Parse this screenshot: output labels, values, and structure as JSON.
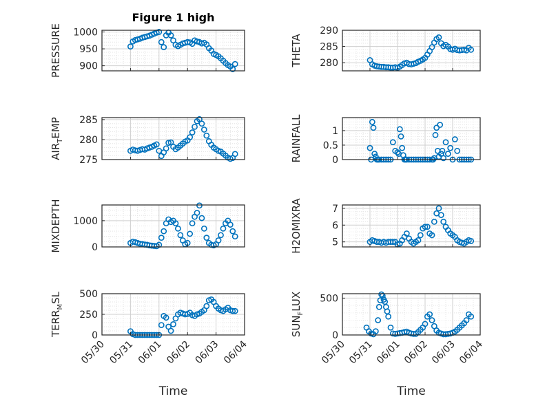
{
  "figure": {
    "title": "Figure 1 high",
    "x_label": "Time",
    "date_ticks": [
      "05/30",
      "05/31",
      "06/01",
      "06/02",
      "06/03",
      "06/04"
    ]
  },
  "colors": {
    "marker": "#0072BD",
    "axes": "#262626",
    "grid": "#d9d9d9",
    "background": "#ffffff"
  },
  "chart_data": [
    {
      "type": "scatter",
      "ylabel_main": "PRESSURE",
      "ylabel_sub": "",
      "ylabel_tail": "",
      "ylim": [
        885,
        1005
      ],
      "yticks": [
        900,
        950,
        1000
      ],
      "ytick_labels": [
        "900",
        "950",
        "1000"
      ],
      "title": "Figure 1 high",
      "x": [
        "05/31 00:00",
        "05/31 02:00",
        "05/31 04:00",
        "05/31 06:00",
        "05/31 08:00",
        "05/31 10:00",
        "05/31 12:00",
        "05/31 14:00",
        "05/31 16:00",
        "05/31 18:00",
        "05/31 20:00",
        "05/31 22:00",
        "06/01 00:00",
        "06/01 02:00",
        "06/01 04:00",
        "06/01 06:00",
        "06/01 08:00",
        "06/01 10:00",
        "06/01 12:00",
        "06/01 14:00",
        "06/01 16:00",
        "06/01 18:00",
        "06/01 20:00",
        "06/01 22:00",
        "06/02 00:00",
        "06/02 02:00",
        "06/02 04:00",
        "06/02 06:00",
        "06/02 08:00",
        "06/02 10:00",
        "06/02 12:00",
        "06/02 14:00",
        "06/02 16:00",
        "06/02 18:00",
        "06/02 20:00",
        "06/02 22:00",
        "06/03 00:00",
        "06/03 02:00",
        "06/03 04:00",
        "06/03 06:00",
        "06/03 08:00",
        "06/03 10:00",
        "06/03 12:00",
        "06/03 14:00",
        "06/03 16:00"
      ],
      "y": [
        957,
        972,
        976,
        978,
        980,
        983,
        985,
        987,
        989,
        992,
        995,
        998,
        1000,
        970,
        955,
        990,
        998,
        990,
        975,
        962,
        958,
        962,
        966,
        968,
        970,
        969,
        965,
        975,
        972,
        970,
        966,
        968,
        963,
        952,
        945,
        935,
        932,
        928,
        922,
        915,
        908,
        902,
        898,
        890,
        905
      ]
    },
    {
      "type": "scatter",
      "ylabel_main": "THETA",
      "ylabel_sub": "",
      "ylabel_tail": "",
      "ylim": [
        277.5,
        290
      ],
      "yticks": [
        280,
        285,
        290
      ],
      "ytick_labels": [
        "280",
        "285",
        "290"
      ],
      "title": "",
      "x": [
        "05/31 00:00",
        "05/31 02:00",
        "05/31 04:00",
        "05/31 06:00",
        "05/31 08:00",
        "05/31 10:00",
        "05/31 12:00",
        "05/31 14:00",
        "05/31 16:00",
        "05/31 18:00",
        "05/31 20:00",
        "05/31 22:00",
        "06/01 00:00",
        "06/01 02:00",
        "06/01 04:00",
        "06/01 06:00",
        "06/01 08:00",
        "06/01 10:00",
        "06/01 12:00",
        "06/01 14:00",
        "06/01 16:00",
        "06/01 18:00",
        "06/01 20:00",
        "06/01 22:00",
        "06/02 00:00",
        "06/02 02:00",
        "06/02 04:00",
        "06/02 06:00",
        "06/02 08:00",
        "06/02 10:00",
        "06/02 12:00",
        "06/02 14:00",
        "06/02 16:00",
        "06/02 18:00",
        "06/02 20:00",
        "06/02 22:00",
        "06/03 00:00",
        "06/03 02:00",
        "06/03 04:00",
        "06/03 06:00",
        "06/03 08:00",
        "06/03 10:00",
        "06/03 12:00",
        "06/03 14:00",
        "06/03 16:00"
      ],
      "y": [
        280.8,
        279.5,
        279.1,
        278.9,
        278.8,
        278.7,
        278.7,
        278.6,
        278.6,
        278.5,
        278.5,
        278.6,
        278.4,
        278.8,
        279.3,
        279.8,
        280.0,
        279.6,
        279.5,
        279.7,
        279.9,
        280.3,
        280.6,
        281.0,
        281.5,
        282.5,
        283.6,
        284.8,
        286.2,
        287.3,
        287.8,
        286.0,
        285.1,
        285.5,
        285.0,
        284.2,
        284.0,
        284.3,
        283.9,
        283.8,
        283.9,
        284.0,
        283.8,
        284.6,
        284.0
      ]
    },
    {
      "type": "scatter",
      "ylabel_main": "AIR",
      "ylabel_sub": "T",
      "ylabel_tail": "EMP",
      "ylim": [
        275,
        285.5
      ],
      "yticks": [
        275,
        280,
        285
      ],
      "ytick_labels": [
        "275",
        "280",
        "285"
      ],
      "title": "",
      "x": [
        "05/31 00:00",
        "05/31 02:00",
        "05/31 04:00",
        "05/31 06:00",
        "05/31 08:00",
        "05/31 10:00",
        "05/31 12:00",
        "05/31 14:00",
        "05/31 16:00",
        "05/31 18:00",
        "05/31 20:00",
        "05/31 22:00",
        "06/01 00:00",
        "06/01 02:00",
        "06/01 04:00",
        "06/01 06:00",
        "06/01 08:00",
        "06/01 10:00",
        "06/01 12:00",
        "06/01 14:00",
        "06/01 16:00",
        "06/01 18:00",
        "06/01 20:00",
        "06/01 22:00",
        "06/02 00:00",
        "06/02 02:00",
        "06/02 04:00",
        "06/02 06:00",
        "06/02 08:00",
        "06/02 10:00",
        "06/02 12:00",
        "06/02 14:00",
        "06/02 16:00",
        "06/02 18:00",
        "06/02 20:00",
        "06/02 22:00",
        "06/03 00:00",
        "06/03 02:00",
        "06/03 04:00",
        "06/03 06:00",
        "06/03 08:00",
        "06/03 10:00",
        "06/03 12:00",
        "06/03 14:00",
        "06/03 16:00"
      ],
      "y": [
        277.2,
        277.5,
        277.3,
        277.2,
        277.4,
        277.6,
        277.5,
        277.8,
        278.0,
        278.2,
        278.5,
        278.8,
        277.2,
        275.9,
        276.8,
        277.8,
        279.2,
        279.3,
        278.2,
        277.6,
        278.0,
        278.5,
        279.0,
        279.5,
        279.8,
        280.6,
        281.8,
        283.2,
        284.6,
        285.1,
        284.0,
        282.5,
        281.0,
        279.6,
        278.7,
        278.0,
        277.6,
        277.2,
        277.0,
        276.5,
        276.0,
        275.5,
        275.2,
        275.4,
        276.4
      ]
    },
    {
      "type": "scatter",
      "ylabel_main": "RAINFALL",
      "ylabel_sub": "",
      "ylabel_tail": "",
      "ylim": [
        0,
        1.45
      ],
      "yticks": [
        0,
        0.5,
        1
      ],
      "ytick_labels": [
        "0",
        "0.5",
        "1"
      ],
      "title": "",
      "x": [
        "05/31 00:00",
        "05/31 01:00",
        "05/31 02:00",
        "05/31 03:00",
        "05/31 04:00",
        "05/31 05:00",
        "05/31 06:00",
        "05/31 07:00",
        "05/31 08:00",
        "05/31 10:00",
        "05/31 12:00",
        "05/31 14:00",
        "05/31 16:00",
        "05/31 18:00",
        "05/31 20:00",
        "05/31 22:00",
        "06/01 00:00",
        "06/01 01:00",
        "06/01 02:00",
        "06/01 03:00",
        "06/01 04:00",
        "06/01 05:00",
        "06/01 06:00",
        "06/01 07:00",
        "06/01 08:00",
        "06/01 10:00",
        "06/01 12:00",
        "06/01 14:00",
        "06/01 16:00",
        "06/01 18:00",
        "06/01 20:00",
        "06/01 22:00",
        "06/02 00:00",
        "06/02 02:00",
        "06/02 04:00",
        "06/02 06:00",
        "06/02 07:00",
        "06/02 08:00",
        "06/02 09:00",
        "06/02 10:00",
        "06/02 11:00",
        "06/02 12:00",
        "06/02 13:00",
        "06/02 14:00",
        "06/02 15:00",
        "06/02 16:00",
        "06/02 18:00",
        "06/02 20:00",
        "06/02 22:00",
        "06/03 00:00",
        "06/03 02:00",
        "06/03 04:00",
        "06/03 06:00",
        "06/03 08:00",
        "06/03 10:00",
        "06/03 12:00",
        "06/03 14:00",
        "06/03 16:00"
      ],
      "y": [
        0.4,
        0,
        1.3,
        1.1,
        0.2,
        0.1,
        0,
        0,
        0,
        0,
        0,
        0,
        0,
        0,
        0.6,
        0.3,
        0.25,
        0.2,
        1.05,
        0.8,
        0.4,
        0.15,
        0,
        0,
        0,
        0,
        0,
        0,
        0,
        0,
        0,
        0,
        0,
        0,
        0,
        0,
        0,
        0.05,
        0.85,
        1.1,
        0.3,
        0.1,
        1.2,
        0.2,
        0.3,
        0.05,
        0.6,
        0.2,
        0.4,
        0,
        0.7,
        0.3,
        0,
        0,
        0,
        0,
        0,
        0
      ]
    },
    {
      "type": "scatter",
      "ylabel_main": "MIXDEPTH",
      "ylabel_sub": "",
      "ylabel_tail": "",
      "ylim": [
        0,
        1600
      ],
      "yticks": [
        0,
        1000
      ],
      "ytick_labels": [
        "0",
        "1000"
      ],
      "title": "",
      "x": [
        "05/31 00:00",
        "05/31 02:00",
        "05/31 04:00",
        "05/31 06:00",
        "05/31 08:00",
        "05/31 10:00",
        "05/31 12:00",
        "05/31 14:00",
        "05/31 16:00",
        "05/31 18:00",
        "05/31 20:00",
        "05/31 22:00",
        "06/01 00:00",
        "06/01 02:00",
        "06/01 04:00",
        "06/01 06:00",
        "06/01 08:00",
        "06/01 10:00",
        "06/01 12:00",
        "06/01 14:00",
        "06/01 16:00",
        "06/01 18:00",
        "06/01 20:00",
        "06/01 22:00",
        "06/02 00:00",
        "06/02 02:00",
        "06/02 04:00",
        "06/02 06:00",
        "06/02 08:00",
        "06/02 10:00",
        "06/02 12:00",
        "06/02 14:00",
        "06/02 16:00",
        "06/02 18:00",
        "06/02 20:00",
        "06/02 22:00",
        "06/03 00:00",
        "06/03 02:00",
        "06/03 04:00",
        "06/03 06:00",
        "06/03 08:00",
        "06/03 10:00",
        "06/03 12:00",
        "06/03 14:00",
        "06/03 16:00"
      ],
      "y": [
        150,
        200,
        180,
        150,
        120,
        110,
        90,
        80,
        60,
        50,
        40,
        30,
        80,
        350,
        600,
        900,
        1050,
        950,
        1000,
        900,
        700,
        450,
        250,
        100,
        150,
        500,
        900,
        1150,
        1300,
        1580,
        1100,
        700,
        350,
        150,
        80,
        60,
        100,
        250,
        450,
        700,
        900,
        1000,
        850,
        600,
        400
      ]
    },
    {
      "type": "scatter",
      "ylabel_main": "H2OMIXRA",
      "ylabel_sub": "",
      "ylabel_tail": "",
      "ylim": [
        4.7,
        7.2
      ],
      "yticks": [
        5,
        6,
        7
      ],
      "ytick_labels": [
        "5",
        "6",
        "7"
      ],
      "title": "",
      "x": [
        "05/31 00:00",
        "05/31 02:00",
        "05/31 04:00",
        "05/31 06:00",
        "05/31 08:00",
        "05/31 10:00",
        "05/31 12:00",
        "05/31 14:00",
        "05/31 16:00",
        "05/31 18:00",
        "05/31 20:00",
        "05/31 22:00",
        "06/01 00:00",
        "06/01 02:00",
        "06/01 04:00",
        "06/01 06:00",
        "06/01 08:00",
        "06/01 10:00",
        "06/01 12:00",
        "06/01 14:00",
        "06/01 16:00",
        "06/01 18:00",
        "06/01 20:00",
        "06/01 22:00",
        "06/02 00:00",
        "06/02 02:00",
        "06/02 04:00",
        "06/02 06:00",
        "06/02 08:00",
        "06/02 10:00",
        "06/02 12:00",
        "06/02 14:00",
        "06/02 16:00",
        "06/02 18:00",
        "06/02 20:00",
        "06/02 22:00",
        "06/03 00:00",
        "06/03 02:00",
        "06/03 04:00",
        "06/03 06:00",
        "06/03 08:00",
        "06/03 10:00",
        "06/03 12:00",
        "06/03 14:00",
        "06/03 16:00"
      ],
      "y": [
        5.0,
        5.1,
        5.05,
        5.0,
        5.0,
        4.95,
        5.0,
        4.95,
        5.0,
        5.0,
        5.0,
        5.0,
        4.85,
        4.9,
        5.1,
        5.3,
        5.5,
        5.2,
        5.0,
        4.9,
        5.0,
        5.1,
        5.4,
        5.8,
        5.9,
        5.9,
        5.5,
        5.4,
        6.2,
        6.7,
        7.0,
        6.6,
        6.2,
        5.9,
        5.7,
        5.5,
        5.4,
        5.3,
        5.1,
        5.0,
        4.95,
        4.9,
        5.0,
        5.1,
        5.05
      ]
    },
    {
      "type": "scatter",
      "ylabel_main": "TERR",
      "ylabel_sub": "M",
      "ylabel_tail": "SL",
      "ylim": [
        0,
        500
      ],
      "yticks": [
        0,
        250,
        500
      ],
      "ytick_labels": [
        "0",
        "250",
        "500"
      ],
      "title": "",
      "x": [
        "05/31 00:00",
        "05/31 02:00",
        "05/31 04:00",
        "05/31 06:00",
        "05/31 08:00",
        "05/31 10:00",
        "05/31 12:00",
        "05/31 14:00",
        "05/31 16:00",
        "05/31 18:00",
        "05/31 20:00",
        "05/31 22:00",
        "06/01 00:00",
        "06/01 02:00",
        "06/01 04:00",
        "06/01 06:00",
        "06/01 08:00",
        "06/01 10:00",
        "06/01 12:00",
        "06/01 14:00",
        "06/01 16:00",
        "06/01 18:00",
        "06/01 20:00",
        "06/01 22:00",
        "06/02 00:00",
        "06/02 02:00",
        "06/02 04:00",
        "06/02 06:00",
        "06/02 08:00",
        "06/02 10:00",
        "06/02 12:00",
        "06/02 14:00",
        "06/02 16:00",
        "06/02 18:00",
        "06/02 20:00",
        "06/02 22:00",
        "06/03 00:00",
        "06/03 02:00",
        "06/03 04:00",
        "06/03 06:00",
        "06/03 08:00",
        "06/03 10:00",
        "06/03 12:00",
        "06/03 14:00",
        "06/03 16:00"
      ],
      "y": [
        45,
        10,
        0,
        0,
        0,
        0,
        0,
        0,
        0,
        0,
        0,
        0,
        0,
        120,
        230,
        210,
        100,
        50,
        130,
        200,
        250,
        270,
        260,
        250,
        255,
        270,
        240,
        230,
        250,
        260,
        280,
        300,
        350,
        420,
        430,
        400,
        350,
        320,
        300,
        290,
        310,
        330,
        300,
        290,
        290
      ]
    },
    {
      "type": "scatter",
      "ylabel_main": "SUN",
      "ylabel_sub": "F",
      "ylabel_tail": "LUX",
      "ylim": [
        0,
        560
      ],
      "yticks": [
        0,
        500
      ],
      "ytick_labels": [
        "0",
        "500"
      ],
      "title": "",
      "x": [
        "05/30 21:00",
        "05/30 23:00",
        "05/31 01:00",
        "05/31 03:00",
        "05/31 05:00",
        "05/31 07:00",
        "05/31 08:00",
        "05/31 09:00",
        "05/31 10:00",
        "05/31 11:00",
        "05/31 12:00",
        "05/31 13:00",
        "05/31 14:00",
        "05/31 15:00",
        "05/31 16:00",
        "05/31 18:00",
        "05/31 20:00",
        "05/31 22:00",
        "06/01 00:00",
        "06/01 02:00",
        "06/01 04:00",
        "06/01 06:00",
        "06/01 08:00",
        "06/01 10:00",
        "06/01 12:00",
        "06/01 14:00",
        "06/01 16:00",
        "06/01 18:00",
        "06/01 20:00",
        "06/01 22:00",
        "06/02 00:00",
        "06/02 02:00",
        "06/02 04:00",
        "06/02 06:00",
        "06/02 08:00",
        "06/02 10:00",
        "06/02 12:00",
        "06/02 14:00",
        "06/02 16:00",
        "06/02 18:00",
        "06/02 20:00",
        "06/02 22:00",
        "06/03 00:00",
        "06/03 02:00",
        "06/03 04:00",
        "06/03 06:00",
        "06/03 08:00",
        "06/03 10:00",
        "06/03 12:00",
        "06/03 14:00",
        "06/03 16:00"
      ],
      "y": [
        100,
        50,
        20,
        10,
        50,
        200,
        380,
        470,
        550,
        530,
        480,
        450,
        380,
        320,
        250,
        100,
        20,
        15,
        20,
        25,
        30,
        40,
        45,
        30,
        20,
        15,
        15,
        40,
        70,
        100,
        150,
        250,
        280,
        200,
        120,
        60,
        30,
        20,
        10,
        10,
        15,
        20,
        30,
        45,
        70,
        100,
        130,
        160,
        200,
        280,
        250
      ]
    }
  ]
}
